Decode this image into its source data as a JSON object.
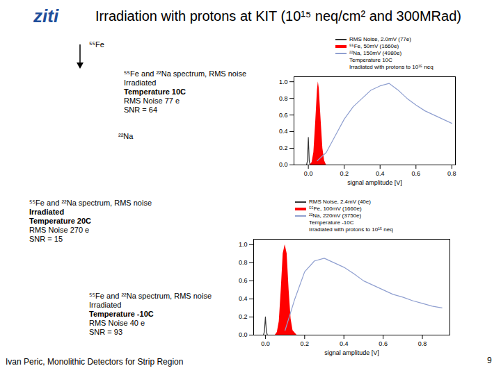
{
  "slide": {
    "title": "Irradiation with protons at KIT (10¹⁵ neq/cm² and 300MRad)",
    "logo": "ziti",
    "footer": "Ivan Peric, Monolithic Detectors for Strip Region",
    "page": 9,
    "labels": [
      "⁵⁵Fe",
      "²²Na"
    ],
    "notes": [
      [
        {
          "text": "⁵⁵Fe and ²²Na spectrum, RMS noise",
          "bold": false
        },
        {
          "text": "Irradiated",
          "bold": false
        },
        {
          "text": "Temperature 10C",
          "bold": true
        },
        {
          "text": "RMS Noise 77 e",
          "bold": false
        },
        {
          "text": "SNR = 64",
          "bold": false
        }
      ],
      [
        {
          "text": "⁵⁵Fe and ²²Na spectrum, RMS noise",
          "bold": false
        },
        {
          "text": "Irradiated",
          "bold": true
        },
        {
          "text": "Temperature 20C",
          "bold": true
        },
        {
          "text": "RMS Noise 270 e",
          "bold": false
        },
        {
          "text": "SNR = 15",
          "bold": false
        }
      ],
      [
        {
          "text": "⁵⁵Fe and ²²Na spectrum, RMS noise",
          "bold": false
        },
        {
          "text": "Irradiated",
          "bold": false
        },
        {
          "text": "Temperature -10C",
          "bold": true
        },
        {
          "text": "RMS Noise 40 e",
          "bold": false
        },
        {
          "text": "SNR = 93",
          "bold": false
        }
      ]
    ]
  },
  "chart_data": [
    {
      "type": "line",
      "xlabel": "signal amplitude [V]",
      "xlim": [
        -0.08,
        0.82
      ],
      "ylim": [
        0,
        1.06
      ],
      "xticks": [
        {
          "value": 0,
          "label": "0.0"
        },
        {
          "value": 0.2,
          "label": "0.2"
        },
        {
          "value": 0.4,
          "label": "0.4"
        },
        {
          "value": 0.6,
          "label": "0.6"
        },
        {
          "value": 0.8,
          "label": "0.8"
        }
      ],
      "yticks": [
        {
          "value": 0,
          "label": "0.0"
        },
        {
          "value": 0.2,
          "label": "0.2"
        },
        {
          "value": 0.4,
          "label": "0.4"
        },
        {
          "value": 0.6,
          "label": "0.6"
        },
        {
          "value": 0.8,
          "label": "0.8"
        },
        {
          "value": 1,
          "label": "1.0"
        }
      ],
      "legend": "top",
      "annotations": [
        "Temperature 10C",
        "Irradiated with protons to 10¹⁵ neq"
      ],
      "series": [
        {
          "name": "RMS Noise, 2.0mV (77e)",
          "color": "#333333",
          "type": "line",
          "x": [
            -0.01,
            -0.005,
            0,
            0.005,
            0.01
          ],
          "values": [
            0,
            0.05,
            0.33,
            0.05,
            0
          ]
        },
        {
          "name": "⁵⁵Fe, 50mV (1660e)",
          "color": "#ff0000",
          "type": "area",
          "x": [
            0.01,
            0.02,
            0.03,
            0.04,
            0.05,
            0.055,
            0.06,
            0.07,
            0.08,
            0.09,
            0.1
          ],
          "values": [
            0,
            0.03,
            0.15,
            0.5,
            0.9,
            1.0,
            0.92,
            0.55,
            0.2,
            0.05,
            0
          ]
        },
        {
          "name": "²²Na, 150mV (4980e)",
          "color": "#8f9fd0",
          "type": "line",
          "x": [
            0.05,
            0.1,
            0.15,
            0.2,
            0.25,
            0.3,
            0.35,
            0.4,
            0.45,
            0.5,
            0.55,
            0.6,
            0.65,
            0.7,
            0.75,
            0.8
          ],
          "values": [
            0.05,
            0.15,
            0.35,
            0.55,
            0.7,
            0.8,
            0.9,
            0.95,
            0.98,
            0.9,
            0.8,
            0.72,
            0.65,
            0.6,
            0.55,
            0.5
          ]
        }
      ]
    },
    {
      "type": "line",
      "xlabel": "signal amplitude [V]",
      "xlim": [
        -0.06,
        0.94
      ],
      "ylim": [
        0,
        1.06
      ],
      "xticks": [
        {
          "value": 0,
          "label": "0.0"
        },
        {
          "value": 0.2,
          "label": "0.2"
        },
        {
          "value": 0.4,
          "label": "0.4"
        },
        {
          "value": 0.6,
          "label": "0.6"
        },
        {
          "value": 0.8,
          "label": "0.8"
        }
      ],
      "yticks": [
        {
          "value": 0,
          "label": "0.0"
        },
        {
          "value": 0.2,
          "label": "0.2"
        },
        {
          "value": 0.4,
          "label": "0.4"
        },
        {
          "value": 0.6,
          "label": "0.6"
        },
        {
          "value": 0.8,
          "label": "0.8"
        },
        {
          "value": 1,
          "label": "1.0"
        }
      ],
      "legend": "top",
      "annotations": [
        "Temperature -10C",
        "Irradiated with protons to 10¹⁵ neq"
      ],
      "series": [
        {
          "name": "RMS Noise, 2.4mV (40e)",
          "color": "#333333",
          "type": "line",
          "x": [
            -0.01,
            -0.005,
            0,
            0.005,
            0.01
          ],
          "values": [
            0,
            0.04,
            0.2,
            0.04,
            0
          ]
        },
        {
          "name": "⁵⁵Fe, 100mV (1660e)",
          "color": "#ff0000",
          "type": "area",
          "x": [
            0.05,
            0.06,
            0.07,
            0.08,
            0.09,
            0.1,
            0.11,
            0.12,
            0.13,
            0.14,
            0.16
          ],
          "values": [
            0,
            0.03,
            0.15,
            0.5,
            0.9,
            1.0,
            0.9,
            0.5,
            0.18,
            0.05,
            0
          ]
        },
        {
          "name": "²²Na, 220mV (3750e)",
          "color": "#8f9fd0",
          "type": "line",
          "x": [
            0.1,
            0.15,
            0.2,
            0.25,
            0.3,
            0.35,
            0.4,
            0.45,
            0.5,
            0.55,
            0.6,
            0.65,
            0.7,
            0.75,
            0.8,
            0.85,
            0.9
          ],
          "values": [
            0.05,
            0.4,
            0.7,
            0.82,
            0.85,
            0.8,
            0.75,
            0.68,
            0.6,
            0.55,
            0.5,
            0.45,
            0.42,
            0.38,
            0.35,
            0.32,
            0.3
          ]
        }
      ]
    }
  ]
}
